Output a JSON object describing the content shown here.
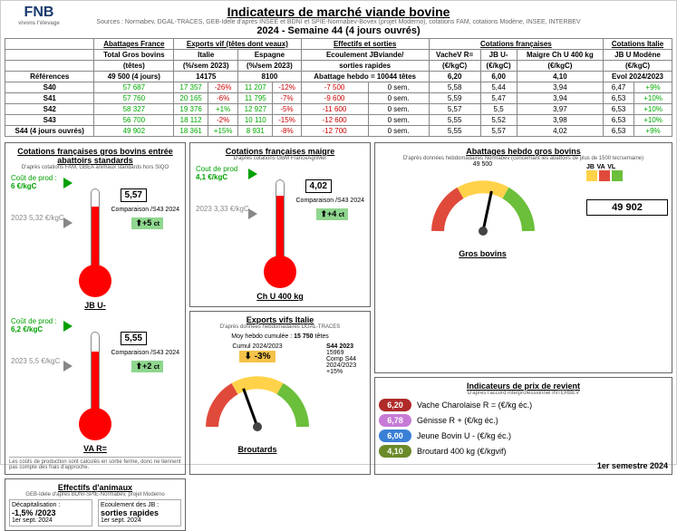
{
  "header": {
    "logo": "FNB",
    "title": "Indicateurs de marché viande bovine",
    "sources": "Sources : Normabev, DGAL-TRACES, GEB-Idele d'après INSEE et BDNI et SPIE-Normabev-Bovex (projet Moderno), cotations FAM, cotations Modène, INSEE, INTERBEV",
    "subtitle": "2024 - Semaine 44 (4 jours ouvrés)"
  },
  "top_table": {
    "groups": [
      "Abattages France",
      "Exports vif (têtes dont veaux)",
      "Effectifs et sorties",
      "Cotations françaises",
      "Cotations Italie"
    ],
    "sub1": [
      "Total Gros bovins",
      "Italie",
      "Espagne",
      "Ecoulement JBviande/",
      "VacheV R=",
      "JB U-",
      "Maigre Ch U 400 kg",
      "JB U Modène"
    ],
    "sub2": [
      "(têtes)",
      "(%/sem 2023)",
      "(%/sem 2023)",
      "sorties rapides",
      "(€/kgC)",
      "(€/kgC)",
      "(€/kgC)",
      "(€/kgC)"
    ],
    "ref_row": [
      "Références",
      "49 500 (4 jours)",
      "14175",
      "8100",
      "Abattage hebdo = 10044 têtes",
      "6,20",
      "6,00",
      "4,10",
      "Evol 2024/2023"
    ],
    "rows": [
      {
        "label": "S40",
        "vals": [
          "57 687",
          "17 357",
          "-26%",
          "11 207",
          "-12%",
          "-7 500",
          "0 sem.",
          "5,58",
          "5,44",
          "3,94",
          "6,47",
          "+9%"
        ]
      },
      {
        "label": "S41",
        "vals": [
          "57 760",
          "20 165",
          "-6%",
          "11 795",
          "-7%",
          "-9 600",
          "0 sem.",
          "5,59",
          "5,47",
          "3,94",
          "6,53",
          "+10%"
        ]
      },
      {
        "label": "S42",
        "vals": [
          "58 327",
          "19 376",
          "+1%",
          "12 927",
          "-5%",
          "-11 600",
          "0 sem.",
          "5,57",
          "5,5",
          "3,97",
          "6,53",
          "+10%"
        ]
      },
      {
        "label": "S43",
        "vals": [
          "56 700",
          "18 112",
          "-2%",
          "10 110",
          "-15%",
          "-12 600",
          "0 sem.",
          "5,55",
          "5,52",
          "3,98",
          "6,53",
          "+10%"
        ]
      },
      {
        "label": "S44 (4 jours ouvrés)",
        "vals": [
          "49 902",
          "18 361",
          "+15%",
          "8 931",
          "-8%",
          "-12 700",
          "0 sem.",
          "5,55",
          "5,57",
          "4,02",
          "6,53",
          "+9%"
        ]
      }
    ],
    "pos_cols": [
      2,
      4
    ],
    "colors": {
      "neg": "#c00000",
      "pos": "#00a000",
      "hilite": "#00a000"
    }
  },
  "thermo_panel": {
    "title": "Cotations françaises gros bovins entrée abattoirs standards",
    "src": "D'après cotations FAM, GBEA animaux standards hors SIQO",
    "items": [
      {
        "label": "JB U-",
        "cost_label": "Coût de prod :",
        "cost": "6 €/kgC",
        "cost_color": "#00a000",
        "ref2023": "5,32 €/kgC",
        "value": "5,57",
        "cmp_label": "Comparaison /S43 2024",
        "cmp": "+5",
        "cmp_unit": "ct",
        "bulb_color": "#ff0000",
        "fill_h": 70
      },
      {
        "label": "VA R=",
        "cost_label": "Coût de prod :",
        "cost": "6,2 €/kgC",
        "cost_color": "#00a000",
        "ref2023": "5,5 €/kgC",
        "value": "5,55",
        "cmp_label": "Comparaison /S43 2024",
        "cmp": "+2",
        "cmp_unit": "ct",
        "bulb_color": "#ff0000",
        "fill_h": 68
      }
    ],
    "footnote": "Les coûts de production sont calculés en sortie ferme, donc ne tiennent pas compte des frais d'approche."
  },
  "maigre_panel": {
    "title": "Cotations françaises maigre",
    "src": "D'après cotations GBM FranceAgriMer",
    "item": {
      "label": "Ch U 400 kg",
      "cost_label": "Cout de prod",
      "cost": "4,1 €/kgC",
      "cost_color": "#00a000",
      "ref2023": "3,33 €/kgC",
      "value": "4,02",
      "cmp_label": "Comparaison /S43 2024",
      "cmp": "+4",
      "cmp_unit": "ct",
      "bulb_color": "#ff0000",
      "fill_h": 72
    }
  },
  "abattage_gauge": {
    "title": "Abattages hebdo gros bovins",
    "src": "D'après données hebdomadaires Normabev (concernant les abattoirs de plus de 1500 tec/semaine)",
    "ref": "49 500",
    "value": "49 902",
    "label": "Gros bovins",
    "legend": [
      {
        "k": "JB",
        "c": "#ffd24a"
      },
      {
        "k": "VA",
        "c": "#e04a3a"
      },
      {
        "k": "VL",
        "c": "#6bbf3a"
      }
    ],
    "needle_deg": 12,
    "arc_colors": [
      "#e04a3a",
      "#ffd24a",
      "#6bbf3a"
    ]
  },
  "exports_gauge": {
    "title": "Exports vifs Italie",
    "src": "D'après données hebdomadaires DGAL-TRACES",
    "moy_label": "Moy hebdo cumulée :",
    "moy": "15 750",
    "moy_unit": "têtes",
    "cumul_label": "Cumul 2024/2023",
    "cumul": "-3%",
    "cumul_color": "#f5c24a",
    "s44_label": "S44 2023",
    "s44": "15969",
    "comp_label": "Comp S44 2024/2023",
    "comp": "+15%",
    "gauge_label": "Broutards",
    "needle_deg": -20,
    "arc_colors": [
      "#e04a3a",
      "#ffd24a",
      "#6bbf3a"
    ]
  },
  "cost_panel": {
    "title": "Indicateurs de prix de revient",
    "src": "D'après l'accord interprofessionnel INTERBEV",
    "rows": [
      {
        "v": "6,20",
        "c": "#b02a2a",
        "label": "Vache Charolaise R = (€/kg éc.)"
      },
      {
        "v": "6,78",
        "c": "#c77bd6",
        "label": "Génisse R + (€/kg éc.)"
      },
      {
        "v": "6,00",
        "c": "#3a7fd6",
        "label": "Jeune Bovin U - (€/kg éc.)"
      },
      {
        "v": "4,10",
        "c": "#6b8a2a",
        "label": "Broutard 400 kg (€/kgvif)"
      }
    ],
    "period": "1er semestre 2024"
  },
  "effectifs_panel": {
    "title": "Effectifs d'animaux",
    "src": "GEB-Idele d'après BDNI-SPIE-Normabev, projet Moderno",
    "decap_label": "Décapitalisation :",
    "decap": "-1,5% /2023",
    "decap_date": "1er sept. 2024",
    "ecoul_label": "Ecoulement des JB :",
    "ecoul": "sorties rapides",
    "ecoul_date": "1er sept. 2024"
  }
}
